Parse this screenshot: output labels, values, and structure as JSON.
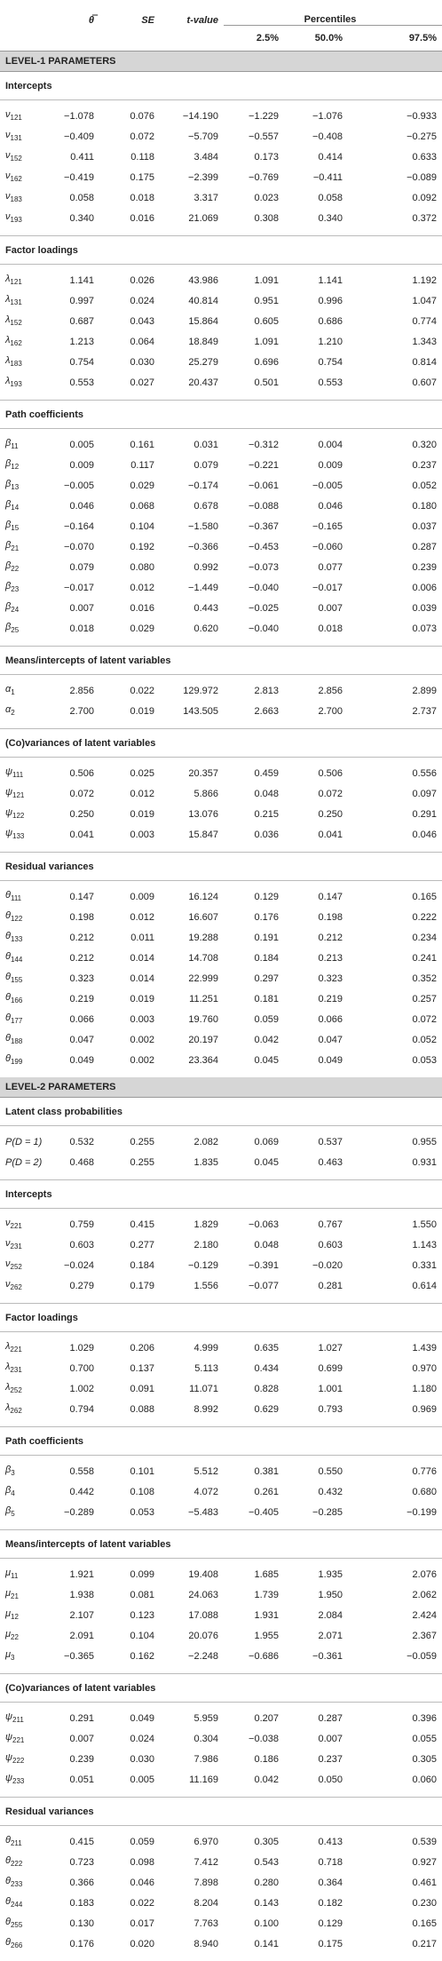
{
  "header": {
    "estimate": "θ̿",
    "se": "SE",
    "t": "t-value",
    "percentiles": "Percentiles",
    "p_labels": [
      "2.5%",
      "50.0%",
      "97.5%"
    ]
  },
  "levels": [
    {
      "title": "LEVEL-1 PARAMETERS",
      "sections": [
        {
          "title": "Intercepts",
          "rows": [
            {
              "symbol": "ν",
              "sub": "121",
              "values": [
                "−1.078",
                "0.076",
                "−14.190",
                "−1.229",
                "−1.076",
                "−0.933"
              ]
            },
            {
              "symbol": "ν",
              "sub": "131",
              "values": [
                "−0.409",
                "0.072",
                "−5.709",
                "−0.557",
                "−0.408",
                "−0.275"
              ]
            },
            {
              "symbol": "ν",
              "sub": "152",
              "values": [
                "0.411",
                "0.118",
                "3.484",
                "0.173",
                "0.414",
                "0.633"
              ]
            },
            {
              "symbol": "ν",
              "sub": "162",
              "values": [
                "−0.419",
                "0.175",
                "−2.399",
                "−0.769",
                "−0.411",
                "−0.089"
              ]
            },
            {
              "symbol": "ν",
              "sub": "183",
              "values": [
                "0.058",
                "0.018",
                "3.317",
                "0.023",
                "0.058",
                "0.092"
              ]
            },
            {
              "symbol": "ν",
              "sub": "193",
              "values": [
                "0.340",
                "0.016",
                "21.069",
                "0.308",
                "0.340",
                "0.372"
              ]
            }
          ]
        },
        {
          "title": "Factor loadings",
          "rows": [
            {
              "symbol": "λ",
              "sub": "121",
              "values": [
                "1.141",
                "0.026",
                "43.986",
                "1.091",
                "1.141",
                "1.192"
              ]
            },
            {
              "symbol": "λ",
              "sub": "131",
              "values": [
                "0.997",
                "0.024",
                "40.814",
                "0.951",
                "0.996",
                "1.047"
              ]
            },
            {
              "symbol": "λ",
              "sub": "152",
              "values": [
                "0.687",
                "0.043",
                "15.864",
                "0.605",
                "0.686",
                "0.774"
              ]
            },
            {
              "symbol": "λ",
              "sub": "162",
              "values": [
                "1.213",
                "0.064",
                "18.849",
                "1.091",
                "1.210",
                "1.343"
              ]
            },
            {
              "symbol": "λ",
              "sub": "183",
              "values": [
                "0.754",
                "0.030",
                "25.279",
                "0.696",
                "0.754",
                "0.814"
              ]
            },
            {
              "symbol": "λ",
              "sub": "193",
              "values": [
                "0.553",
                "0.027",
                "20.437",
                "0.501",
                "0.553",
                "0.607"
              ]
            }
          ]
        },
        {
          "title": "Path coefficients",
          "rows": [
            {
              "symbol": "β",
              "sub": "11",
              "values": [
                "0.005",
                "0.161",
                "0.031",
                "−0.312",
                "0.004",
                "0.320"
              ]
            },
            {
              "symbol": "β",
              "sub": "12",
              "values": [
                "0.009",
                "0.117",
                "0.079",
                "−0.221",
                "0.009",
                "0.237"
              ]
            },
            {
              "symbol": "β",
              "sub": "13",
              "values": [
                "−0.005",
                "0.029",
                "−0.174",
                "−0.061",
                "−0.005",
                "0.052"
              ]
            },
            {
              "symbol": "β",
              "sub": "14",
              "values": [
                "0.046",
                "0.068",
                "0.678",
                "−0.088",
                "0.046",
                "0.180"
              ]
            },
            {
              "symbol": "β",
              "sub": "15",
              "values": [
                "−0.164",
                "0.104",
                "−1.580",
                "−0.367",
                "−0.165",
                "0.037"
              ]
            },
            {
              "symbol": "β",
              "sub": "21",
              "values": [
                "−0.070",
                "0.192",
                "−0.366",
                "−0.453",
                "−0.060",
                "0.287"
              ]
            },
            {
              "symbol": "β",
              "sub": "22",
              "values": [
                "0.079",
                "0.080",
                "0.992",
                "−0.073",
                "0.077",
                "0.239"
              ]
            },
            {
              "symbol": "β",
              "sub": "23",
              "values": [
                "−0.017",
                "0.012",
                "−1.449",
                "−0.040",
                "−0.017",
                "0.006"
              ]
            },
            {
              "symbol": "β",
              "sub": "24",
              "values": [
                "0.007",
                "0.016",
                "0.443",
                "−0.025",
                "0.007",
                "0.039"
              ]
            },
            {
              "symbol": "β",
              "sub": "25",
              "values": [
                "0.018",
                "0.029",
                "0.620",
                "−0.040",
                "0.018",
                "0.073"
              ]
            }
          ]
        },
        {
          "title": "Means/intercepts of latent variables",
          "rows": [
            {
              "symbol": "α",
              "sub": "1",
              "values": [
                "2.856",
                "0.022",
                "129.972",
                "2.813",
                "2.856",
                "2.899"
              ]
            },
            {
              "symbol": "α",
              "sub": "2",
              "values": [
                "2.700",
                "0.019",
                "143.505",
                "2.663",
                "2.700",
                "2.737"
              ]
            }
          ]
        },
        {
          "title": "(Co)variances of latent variables",
          "rows": [
            {
              "symbol": "ψ",
              "sub": "111",
              "values": [
                "0.506",
                "0.025",
                "20.357",
                "0.459",
                "0.506",
                "0.556"
              ]
            },
            {
              "symbol": "ψ",
              "sub": "121",
              "values": [
                "0.072",
                "0.012",
                "5.866",
                "0.048",
                "0.072",
                "0.097"
              ]
            },
            {
              "symbol": "ψ",
              "sub": "122",
              "values": [
                "0.250",
                "0.019",
                "13.076",
                "0.215",
                "0.250",
                "0.291"
              ]
            },
            {
              "symbol": "ψ",
              "sub": "133",
              "values": [
                "0.041",
                "0.003",
                "15.847",
                "0.036",
                "0.041",
                "0.046"
              ]
            }
          ]
        },
        {
          "title": "Residual variances",
          "rows": [
            {
              "symbol": "θ",
              "sub": "111",
              "values": [
                "0.147",
                "0.009",
                "16.124",
                "0.129",
                "0.147",
                "0.165"
              ]
            },
            {
              "symbol": "θ",
              "sub": "122",
              "values": [
                "0.198",
                "0.012",
                "16.607",
                "0.176",
                "0.198",
                "0.222"
              ]
            },
            {
              "symbol": "θ",
              "sub": "133",
              "values": [
                "0.212",
                "0.011",
                "19.288",
                "0.191",
                "0.212",
                "0.234"
              ]
            },
            {
              "symbol": "θ",
              "sub": "144",
              "values": [
                "0.212",
                "0.014",
                "14.708",
                "0.184",
                "0.213",
                "0.241"
              ]
            },
            {
              "symbol": "θ",
              "sub": "155",
              "values": [
                "0.323",
                "0.014",
                "22.999",
                "0.297",
                "0.323",
                "0.352"
              ]
            },
            {
              "symbol": "θ",
              "sub": "166",
              "values": [
                "0.219",
                "0.019",
                "11.251",
                "0.181",
                "0.219",
                "0.257"
              ]
            },
            {
              "symbol": "θ",
              "sub": "177",
              "values": [
                "0.066",
                "0.003",
                "19.760",
                "0.059",
                "0.066",
                "0.072"
              ]
            },
            {
              "symbol": "θ",
              "sub": "188",
              "values": [
                "0.047",
                "0.002",
                "20.197",
                "0.042",
                "0.047",
                "0.052"
              ]
            },
            {
              "symbol": "θ",
              "sub": "199",
              "values": [
                "0.049",
                "0.002",
                "23.364",
                "0.045",
                "0.049",
                "0.053"
              ]
            }
          ]
        }
      ]
    },
    {
      "title": "LEVEL-2 PARAMETERS",
      "sections": [
        {
          "title": "Latent class probabilities",
          "rows": [
            {
              "label": "P(D = 1)",
              "values": [
                "0.532",
                "0.255",
                "2.082",
                "0.069",
                "0.537",
                "0.955"
              ]
            },
            {
              "label": "P(D = 2)",
              "values": [
                "0.468",
                "0.255",
                "1.835",
                "0.045",
                "0.463",
                "0.931"
              ]
            }
          ]
        },
        {
          "title": "Intercepts",
          "rows": [
            {
              "symbol": "ν",
              "sub": "221",
              "values": [
                "0.759",
                "0.415",
                "1.829",
                "−0.063",
                "0.767",
                "1.550"
              ]
            },
            {
              "symbol": "ν",
              "sub": "231",
              "values": [
                "0.603",
                "0.277",
                "2.180",
                "0.048",
                "0.603",
                "1.143"
              ]
            },
            {
              "symbol": "ν",
              "sub": "252",
              "values": [
                "−0.024",
                "0.184",
                "−0.129",
                "−0.391",
                "−0.020",
                "0.331"
              ]
            },
            {
              "symbol": "ν",
              "sub": "262",
              "values": [
                "0.279",
                "0.179",
                "1.556",
                "−0.077",
                "0.281",
                "0.614"
              ]
            }
          ]
        },
        {
          "title": "Factor loadings",
          "rows": [
            {
              "symbol": "λ",
              "sub": "221",
              "values": [
                "1.029",
                "0.206",
                "4.999",
                "0.635",
                "1.027",
                "1.439"
              ]
            },
            {
              "symbol": "λ",
              "sub": "231",
              "values": [
                "0.700",
                "0.137",
                "5.113",
                "0.434",
                "0.699",
                "0.970"
              ]
            },
            {
              "symbol": "λ",
              "sub": "252",
              "values": [
                "1.002",
                "0.091",
                "11.071",
                "0.828",
                "1.001",
                "1.180"
              ]
            },
            {
              "symbol": "λ",
              "sub": "262",
              "values": [
                "0.794",
                "0.088",
                "8.992",
                "0.629",
                "0.793",
                "0.969"
              ]
            }
          ]
        },
        {
          "title": "Path coefficients",
          "rows": [
            {
              "symbol": "β",
              "sub": "3",
              "values": [
                "0.558",
                "0.101",
                "5.512",
                "0.381",
                "0.550",
                "0.776"
              ]
            },
            {
              "symbol": "β",
              "sub": "4",
              "values": [
                "0.442",
                "0.108",
                "4.072",
                "0.261",
                "0.432",
                "0.680"
              ]
            },
            {
              "symbol": "β",
              "sub": "5",
              "values": [
                "−0.289",
                "0.053",
                "−5.483",
                "−0.405",
                "−0.285",
                "−0.199"
              ]
            }
          ]
        },
        {
          "title": "Means/intercepts of latent variables",
          "rows": [
            {
              "symbol": "μ",
              "sub": "11",
              "values": [
                "1.921",
                "0.099",
                "19.408",
                "1.685",
                "1.935",
                "2.076"
              ]
            },
            {
              "symbol": "μ",
              "sub": "21",
              "values": [
                "1.938",
                "0.081",
                "24.063",
                "1.739",
                "1.950",
                "2.062"
              ]
            },
            {
              "symbol": "μ",
              "sub": "12",
              "values": [
                "2.107",
                "0.123",
                "17.088",
                "1.931",
                "2.084",
                "2.424"
              ]
            },
            {
              "symbol": "μ",
              "sub": "22",
              "values": [
                "2.091",
                "0.104",
                "20.076",
                "1.955",
                "2.071",
                "2.367"
              ]
            },
            {
              "symbol": "μ",
              "sub": "3",
              "values": [
                "−0.365",
                "0.162",
                "−2.248",
                "−0.686",
                "−0.361",
                "−0.059"
              ]
            }
          ]
        },
        {
          "title": "(Co)variances of latent variables",
          "rows": [
            {
              "symbol": "ψ",
              "sub": "211",
              "values": [
                "0.291",
                "0.049",
                "5.959",
                "0.207",
                "0.287",
                "0.396"
              ]
            },
            {
              "symbol": "ψ",
              "sub": "221",
              "values": [
                "0.007",
                "0.024",
                "0.304",
                "−0.038",
                "0.007",
                "0.055"
              ]
            },
            {
              "symbol": "ψ",
              "sub": "222",
              "values": [
                "0.239",
                "0.030",
                "7.986",
                "0.186",
                "0.237",
                "0.305"
              ]
            },
            {
              "symbol": "ψ",
              "sub": "233",
              "values": [
                "0.051",
                "0.005",
                "11.169",
                "0.042",
                "0.050",
                "0.060"
              ]
            }
          ]
        },
        {
          "title": "Residual variances",
          "rows": [
            {
              "symbol": "θ",
              "sub": "211",
              "values": [
                "0.415",
                "0.059",
                "6.970",
                "0.305",
                "0.413",
                "0.539"
              ]
            },
            {
              "symbol": "θ",
              "sub": "222",
              "values": [
                "0.723",
                "0.098",
                "7.412",
                "0.543",
                "0.718",
                "0.927"
              ]
            },
            {
              "symbol": "θ",
              "sub": "233",
              "values": [
                "0.366",
                "0.046",
                "7.898",
                "0.280",
                "0.364",
                "0.461"
              ]
            },
            {
              "symbol": "θ",
              "sub": "244",
              "values": [
                "0.183",
                "0.022",
                "8.204",
                "0.143",
                "0.182",
                "0.230"
              ]
            },
            {
              "symbol": "θ",
              "sub": "255",
              "values": [
                "0.130",
                "0.017",
                "7.763",
                "0.100",
                "0.129",
                "0.165"
              ]
            },
            {
              "symbol": "θ",
              "sub": "266",
              "values": [
                "0.176",
                "0.020",
                "8.940",
                "0.141",
                "0.175",
                "0.217"
              ]
            }
          ]
        }
      ]
    }
  ]
}
